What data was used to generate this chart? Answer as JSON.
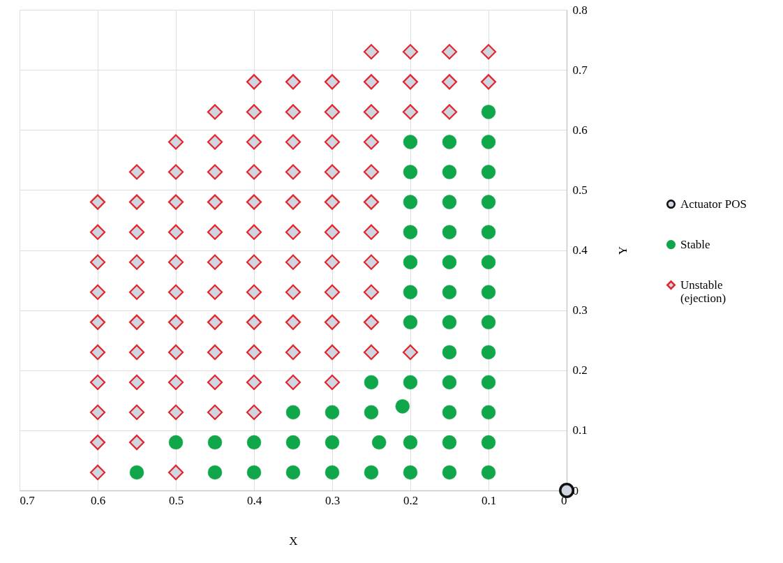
{
  "chart_data": {
    "type": "scatter",
    "xlabel": "X",
    "ylabel": "Y",
    "xlim": [
      0.7,
      0
    ],
    "xticks": [
      0.7,
      0.6,
      0.5,
      0.4,
      0.3,
      0.2,
      0.1,
      0
    ],
    "ylim": [
      0,
      0.8
    ],
    "yticks": [
      0,
      0.1,
      0.2,
      0.3,
      0.4,
      0.5,
      0.6,
      0.7,
      0.8
    ],
    "grid": true,
    "legend": "right",
    "series": [
      {
        "name": "Actuator POS",
        "color": "#111111",
        "marker": "circle",
        "x": [
          0
        ],
        "values": [
          0
        ]
      },
      {
        "name": "Stable",
        "color": "#10a64a",
        "marker": "circle",
        "x": [
          0.1,
          0.2,
          0.15,
          0.1,
          0.2,
          0.15,
          0.1,
          0.2,
          0.15,
          0.1,
          0.2,
          0.15,
          0.1,
          0.2,
          0.15,
          0.1,
          0.2,
          0.15,
          0.1,
          0.2,
          0.15,
          0.1,
          0.15,
          0.1,
          0.25,
          0.2,
          0.15,
          0.1,
          0.35,
          0.3,
          0.25,
          0.21,
          0.15,
          0.1,
          0.5,
          0.45,
          0.4,
          0.35,
          0.3,
          0.24,
          0.2,
          0.15,
          0.1,
          0.55,
          0.45,
          0.4,
          0.35,
          0.3,
          0.25,
          0.2,
          0.15,
          0.1
        ],
        "values": [
          0.63,
          0.58,
          0.58,
          0.58,
          0.53,
          0.53,
          0.53,
          0.48,
          0.48,
          0.48,
          0.43,
          0.43,
          0.43,
          0.38,
          0.38,
          0.38,
          0.33,
          0.33,
          0.33,
          0.28,
          0.28,
          0.28,
          0.23,
          0.23,
          0.18,
          0.18,
          0.18,
          0.18,
          0.13,
          0.13,
          0.13,
          0.14,
          0.13,
          0.13,
          0.08,
          0.08,
          0.08,
          0.08,
          0.08,
          0.08,
          0.08,
          0.08,
          0.08,
          0.03,
          0.03,
          0.03,
          0.03,
          0.03,
          0.03,
          0.03,
          0.03,
          0.03
        ]
      },
      {
        "name": "Unstable (ejection)",
        "color": "#e3262b",
        "marker": "diamond",
        "x": [
          0.25,
          0.2,
          0.15,
          0.1,
          0.4,
          0.35,
          0.3,
          0.25,
          0.2,
          0.15,
          0.1,
          0.45,
          0.4,
          0.35,
          0.3,
          0.25,
          0.2,
          0.15,
          0.5,
          0.45,
          0.4,
          0.35,
          0.3,
          0.25,
          0.55,
          0.5,
          0.45,
          0.4,
          0.35,
          0.3,
          0.25,
          0.6,
          0.55,
          0.5,
          0.45,
          0.4,
          0.35,
          0.3,
          0.25,
          0.6,
          0.55,
          0.5,
          0.45,
          0.4,
          0.35,
          0.3,
          0.25,
          0.6,
          0.55,
          0.5,
          0.45,
          0.4,
          0.35,
          0.3,
          0.25,
          0.6,
          0.55,
          0.5,
          0.45,
          0.4,
          0.35,
          0.3,
          0.25,
          0.6,
          0.55,
          0.5,
          0.45,
          0.4,
          0.35,
          0.3,
          0.25,
          0.6,
          0.55,
          0.5,
          0.45,
          0.4,
          0.35,
          0.3,
          0.25,
          0.2,
          0.6,
          0.55,
          0.5,
          0.45,
          0.4,
          0.35,
          0.3,
          0.6,
          0.55,
          0.5,
          0.45,
          0.4,
          0.6,
          0.55,
          0.6,
          0.5
        ],
        "values": [
          0.73,
          0.73,
          0.73,
          0.73,
          0.68,
          0.68,
          0.68,
          0.68,
          0.68,
          0.68,
          0.68,
          0.63,
          0.63,
          0.63,
          0.63,
          0.63,
          0.63,
          0.63,
          0.58,
          0.58,
          0.58,
          0.58,
          0.58,
          0.58,
          0.53,
          0.53,
          0.53,
          0.53,
          0.53,
          0.53,
          0.53,
          0.48,
          0.48,
          0.48,
          0.48,
          0.48,
          0.48,
          0.48,
          0.48,
          0.43,
          0.43,
          0.43,
          0.43,
          0.43,
          0.43,
          0.43,
          0.43,
          0.38,
          0.38,
          0.38,
          0.38,
          0.38,
          0.38,
          0.38,
          0.38,
          0.33,
          0.33,
          0.33,
          0.33,
          0.33,
          0.33,
          0.33,
          0.33,
          0.28,
          0.28,
          0.28,
          0.28,
          0.28,
          0.28,
          0.28,
          0.28,
          0.23,
          0.23,
          0.23,
          0.23,
          0.23,
          0.23,
          0.23,
          0.23,
          0.23,
          0.18,
          0.18,
          0.18,
          0.18,
          0.18,
          0.18,
          0.18,
          0.13,
          0.13,
          0.13,
          0.13,
          0.13,
          0.08,
          0.08,
          0.03,
          0.03
        ]
      }
    ]
  }
}
